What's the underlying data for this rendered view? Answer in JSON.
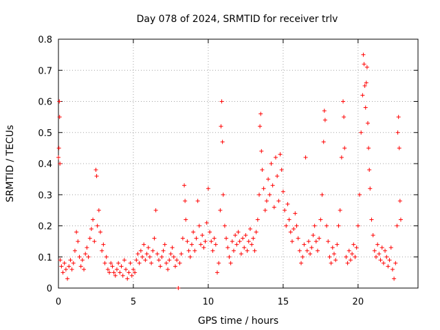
{
  "chart_data": {
    "type": "scatter",
    "title": "Day 078 of 2024, SRMTID for receiver trlv",
    "xlabel": "GPS time / hours",
    "ylabel": "SRMTID / TECUs",
    "xlim": [
      0,
      24
    ],
    "ylim": [
      0,
      0.8
    ],
    "xticks": [
      0,
      5,
      10,
      15,
      20
    ],
    "xtick_labels": [
      "0",
      "5",
      "10",
      "15",
      "20"
    ],
    "yticks": [
      0,
      0.1,
      0.2,
      0.3,
      0.4,
      0.5,
      0.6,
      0.7,
      0.8
    ],
    "ytick_labels": [
      "0",
      "0.1",
      "0.2",
      "0.3",
      "0.4",
      "0.5",
      "0.6",
      "0.7",
      "0.8"
    ],
    "grid": true,
    "marker": "+",
    "color": "#ff0000",
    "series": [
      {
        "name": "SRMTID",
        "points": [
          [
            0.0,
            0.42
          ],
          [
            0.03,
            0.45
          ],
          [
            0.06,
            0.6
          ],
          [
            0.08,
            0.55
          ],
          [
            0.1,
            0.4
          ],
          [
            0.12,
            0.09
          ],
          [
            0.2,
            0.07
          ],
          [
            0.3,
            0.05
          ],
          [
            0.4,
            0.08
          ],
          [
            0.5,
            0.06
          ],
          [
            0.6,
            0.03
          ],
          [
            0.7,
            0.07
          ],
          [
            0.8,
            0.09
          ],
          [
            0.9,
            0.06
          ],
          [
            1.0,
            0.08
          ],
          [
            1.1,
            0.12
          ],
          [
            1.2,
            0.18
          ],
          [
            1.3,
            0.15
          ],
          [
            1.4,
            0.1
          ],
          [
            1.5,
            0.07
          ],
          [
            1.6,
            0.09
          ],
          [
            1.7,
            0.06
          ],
          [
            1.8,
            0.11
          ],
          [
            1.9,
            0.13
          ],
          [
            2.0,
            0.1
          ],
          [
            2.1,
            0.16
          ],
          [
            2.2,
            0.19
          ],
          [
            2.3,
            0.22
          ],
          [
            2.4,
            0.15
          ],
          [
            2.5,
            0.38
          ],
          [
            2.55,
            0.36
          ],
          [
            2.6,
            0.2
          ],
          [
            2.7,
            0.25
          ],
          [
            2.8,
            0.18
          ],
          [
            2.9,
            0.12
          ],
          [
            3.0,
            0.14
          ],
          [
            3.1,
            0.08
          ],
          [
            3.2,
            0.1
          ],
          [
            3.3,
            0.06
          ],
          [
            3.4,
            0.05
          ],
          [
            3.5,
            0.08
          ],
          [
            3.6,
            0.07
          ],
          [
            3.7,
            0.05
          ],
          [
            3.8,
            0.04
          ],
          [
            3.9,
            0.06
          ],
          [
            4.0,
            0.08
          ],
          [
            4.1,
            0.05
          ],
          [
            4.2,
            0.07
          ],
          [
            4.3,
            0.04
          ],
          [
            4.4,
            0.09
          ],
          [
            4.5,
            0.06
          ],
          [
            4.6,
            0.03
          ],
          [
            4.7,
            0.05
          ],
          [
            4.8,
            0.08
          ],
          [
            4.9,
            0.04
          ],
          [
            5.0,
            0.06
          ],
          [
            5.1,
            0.05
          ],
          [
            5.2,
            0.09
          ],
          [
            5.3,
            0.11
          ],
          [
            5.4,
            0.08
          ],
          [
            5.5,
            0.12
          ],
          [
            5.6,
            0.1
          ],
          [
            5.7,
            0.14
          ],
          [
            5.8,
            0.09
          ],
          [
            5.9,
            0.11
          ],
          [
            6.0,
            0.13
          ],
          [
            6.1,
            0.1
          ],
          [
            6.2,
            0.08
          ],
          [
            6.3,
            0.12
          ],
          [
            6.4,
            0.16
          ],
          [
            6.5,
            0.25
          ],
          [
            6.6,
            0.11
          ],
          [
            6.7,
            0.09
          ],
          [
            6.8,
            0.07
          ],
          [
            6.9,
            0.1
          ],
          [
            7.0,
            0.12
          ],
          [
            7.1,
            0.14
          ],
          [
            7.2,
            0.08
          ],
          [
            7.3,
            0.06
          ],
          [
            7.4,
            0.09
          ],
          [
            7.5,
            0.11
          ],
          [
            7.6,
            0.13
          ],
          [
            7.7,
            0.1
          ],
          [
            7.8,
            0.07
          ],
          [
            7.9,
            0.09
          ],
          [
            8.0,
            0.0
          ],
          [
            8.1,
            0.08
          ],
          [
            8.2,
            0.11
          ],
          [
            8.3,
            0.16
          ],
          [
            8.4,
            0.33
          ],
          [
            8.45,
            0.28
          ],
          [
            8.5,
            0.22
          ],
          [
            8.6,
            0.15
          ],
          [
            8.7,
            0.12
          ],
          [
            8.8,
            0.1
          ],
          [
            8.9,
            0.14
          ],
          [
            9.0,
            0.18
          ],
          [
            9.1,
            0.12
          ],
          [
            9.2,
            0.16
          ],
          [
            9.3,
            0.28
          ],
          [
            9.4,
            0.2
          ],
          [
            9.5,
            0.14
          ],
          [
            9.6,
            0.17
          ],
          [
            9.7,
            0.13
          ],
          [
            9.8,
            0.15
          ],
          [
            9.9,
            0.21
          ],
          [
            10.0,
            0.32
          ],
          [
            10.1,
            0.18
          ],
          [
            10.2,
            0.15
          ],
          [
            10.3,
            0.12
          ],
          [
            10.4,
            0.16
          ],
          [
            10.5,
            0.14
          ],
          [
            10.6,
            0.05
          ],
          [
            10.7,
            0.08
          ],
          [
            10.8,
            0.25
          ],
          [
            10.85,
            0.52
          ],
          [
            10.9,
            0.6
          ],
          [
            10.95,
            0.47
          ],
          [
            11.0,
            0.3
          ],
          [
            11.1,
            0.2
          ],
          [
            11.2,
            0.16
          ],
          [
            11.3,
            0.13
          ],
          [
            11.4,
            0.1
          ],
          [
            11.5,
            0.08
          ],
          [
            11.6,
            0.15
          ],
          [
            11.7,
            0.12
          ],
          [
            11.8,
            0.17
          ],
          [
            11.9,
            0.14
          ],
          [
            12.0,
            0.18
          ],
          [
            12.1,
            0.15
          ],
          [
            12.2,
            0.11
          ],
          [
            12.3,
            0.16
          ],
          [
            12.4,
            0.13
          ],
          [
            12.5,
            0.17
          ],
          [
            12.6,
            0.12
          ],
          [
            12.7,
            0.15
          ],
          [
            12.8,
            0.19
          ],
          [
            12.9,
            0.14
          ],
          [
            13.0,
            0.16
          ],
          [
            13.1,
            0.12
          ],
          [
            13.2,
            0.18
          ],
          [
            13.3,
            0.22
          ],
          [
            13.4,
            0.3
          ],
          [
            13.45,
            0.52
          ],
          [
            13.5,
            0.56
          ],
          [
            13.55,
            0.44
          ],
          [
            13.6,
            0.38
          ],
          [
            13.7,
            0.32
          ],
          [
            13.8,
            0.25
          ],
          [
            13.9,
            0.28
          ],
          [
            14.0,
            0.35
          ],
          [
            14.1,
            0.3
          ],
          [
            14.2,
            0.4
          ],
          [
            14.3,
            0.33
          ],
          [
            14.4,
            0.26
          ],
          [
            14.5,
            0.42
          ],
          [
            14.6,
            0.36
          ],
          [
            14.7,
            0.28
          ],
          [
            14.8,
            0.43
          ],
          [
            14.9,
            0.38
          ],
          [
            15.0,
            0.31
          ],
          [
            15.1,
            0.25
          ],
          [
            15.2,
            0.2
          ],
          [
            15.3,
            0.27
          ],
          [
            15.4,
            0.22
          ],
          [
            15.5,
            0.18
          ],
          [
            15.6,
            0.15
          ],
          [
            15.7,
            0.19
          ],
          [
            15.8,
            0.24
          ],
          [
            15.9,
            0.2
          ],
          [
            16.0,
            0.16
          ],
          [
            16.1,
            0.12
          ],
          [
            16.2,
            0.08
          ],
          [
            16.3,
            0.1
          ],
          [
            16.4,
            0.14
          ],
          [
            16.5,
            0.42
          ],
          [
            16.6,
            0.12
          ],
          [
            16.7,
            0.15
          ],
          [
            16.8,
            0.11
          ],
          [
            16.9,
            0.13
          ],
          [
            17.0,
            0.17
          ],
          [
            17.1,
            0.2
          ],
          [
            17.2,
            0.15
          ],
          [
            17.3,
            0.12
          ],
          [
            17.4,
            0.16
          ],
          [
            17.5,
            0.22
          ],
          [
            17.6,
            0.3
          ],
          [
            17.7,
            0.47
          ],
          [
            17.75,
            0.57
          ],
          [
            17.8,
            0.54
          ],
          [
            17.9,
            0.2
          ],
          [
            18.0,
            0.15
          ],
          [
            18.1,
            0.1
          ],
          [
            18.2,
            0.08
          ],
          [
            18.3,
            0.13
          ],
          [
            18.4,
            0.11
          ],
          [
            18.5,
            0.09
          ],
          [
            18.6,
            0.14
          ],
          [
            18.7,
            0.2
          ],
          [
            18.8,
            0.25
          ],
          [
            18.9,
            0.42
          ],
          [
            19.0,
            0.6
          ],
          [
            19.05,
            0.55
          ],
          [
            19.1,
            0.45
          ],
          [
            19.2,
            0.1
          ],
          [
            19.3,
            0.08
          ],
          [
            19.4,
            0.12
          ],
          [
            19.5,
            0.09
          ],
          [
            19.6,
            0.11
          ],
          [
            19.7,
            0.14
          ],
          [
            19.8,
            0.1
          ],
          [
            19.9,
            0.13
          ],
          [
            20.0,
            0.2
          ],
          [
            20.1,
            0.3
          ],
          [
            20.2,
            0.5
          ],
          [
            20.3,
            0.62
          ],
          [
            20.35,
            0.75
          ],
          [
            20.4,
            0.72
          ],
          [
            20.45,
            0.65
          ],
          [
            20.5,
            0.58
          ],
          [
            20.55,
            0.66
          ],
          [
            20.6,
            0.71
          ],
          [
            20.65,
            0.53
          ],
          [
            20.7,
            0.45
          ],
          [
            20.75,
            0.38
          ],
          [
            20.8,
            0.32
          ],
          [
            20.9,
            0.22
          ],
          [
            21.0,
            0.17
          ],
          [
            21.1,
            0.12
          ],
          [
            21.2,
            0.1
          ],
          [
            21.3,
            0.14
          ],
          [
            21.4,
            0.11
          ],
          [
            21.5,
            0.09
          ],
          [
            21.6,
            0.13
          ],
          [
            21.7,
            0.08
          ],
          [
            21.8,
            0.12
          ],
          [
            21.9,
            0.1
          ],
          [
            22.0,
            0.07
          ],
          [
            22.1,
            0.09
          ],
          [
            22.2,
            0.13
          ],
          [
            22.3,
            0.06
          ],
          [
            22.4,
            0.03
          ],
          [
            22.5,
            0.08
          ],
          [
            22.6,
            0.2
          ],
          [
            22.65,
            0.5
          ],
          [
            22.7,
            0.55
          ],
          [
            22.75,
            0.45
          ],
          [
            22.8,
            0.28
          ],
          [
            22.85,
            0.22
          ]
        ]
      }
    ]
  }
}
